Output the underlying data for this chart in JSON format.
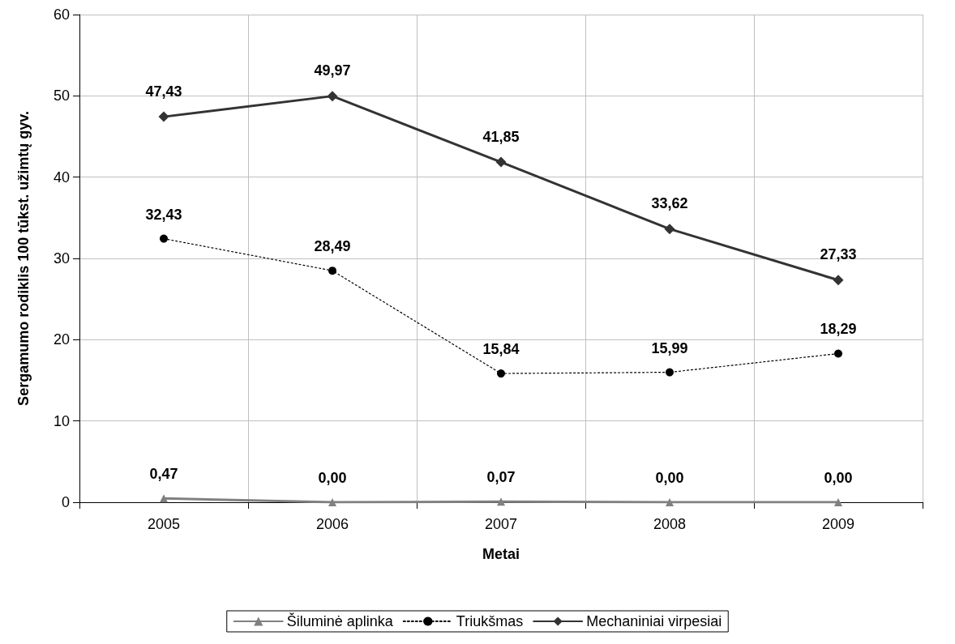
{
  "chart_data": {
    "type": "line",
    "xlabel": "Metai",
    "ylabel": "Sergamumo rodiklis 100 tūkst. užimtų gyv.",
    "categories": [
      "2005",
      "2006",
      "2007",
      "2008",
      "2009"
    ],
    "series": [
      {
        "name": "Šiluminė aplinka",
        "color": "#808080",
        "marker": "triangle",
        "line_style": "solid",
        "values": [
          0.47,
          0.0,
          0.07,
          0.0,
          0.0
        ],
        "value_labels": [
          "0,47",
          "0,00",
          "0,07",
          "0,00",
          "0,00"
        ]
      },
      {
        "name": "Triukšmas",
        "color": "#000000",
        "marker": "circle",
        "line_style": "dotted",
        "values": [
          32.43,
          28.49,
          15.84,
          15.99,
          18.29
        ],
        "value_labels": [
          "32,43",
          "28,49",
          "15,84",
          "15,99",
          "18,29"
        ]
      },
      {
        "name": "Mechaniniai virpesiai",
        "color": "#333333",
        "marker": "diamond",
        "line_style": "solid",
        "values": [
          47.43,
          49.97,
          41.85,
          33.62,
          27.33
        ],
        "value_labels": [
          "47,43",
          "49,97",
          "41,85",
          "33,62",
          "27,33"
        ]
      }
    ],
    "ylim": [
      0,
      60
    ],
    "yticks": [
      0,
      10,
      20,
      30,
      40,
      50,
      60
    ],
    "grid": true,
    "legend": "bottom"
  }
}
